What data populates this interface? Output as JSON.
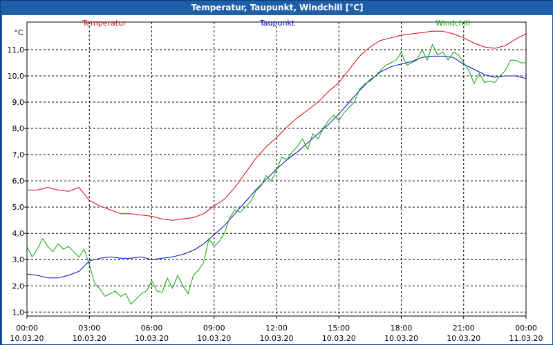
{
  "window": {
    "title": "Temperatur, Taupunkt, Windchill [°C]"
  },
  "chart_data": {
    "type": "line",
    "title": "Temperatur, Taupunkt, Windchill [°C]",
    "ylabel": "°C",
    "ylim": [
      0.85,
      12.05
    ],
    "yticks": [
      "1,0",
      "2,0",
      "3,0",
      "4,0",
      "5,0",
      "6,0",
      "7,0",
      "8,0",
      "9,0",
      "10,0",
      "11,0"
    ],
    "xlim": [
      0,
      24
    ],
    "xticks": [
      {
        "time": "00:00",
        "date": "10.03.20"
      },
      {
        "time": "03:00",
        "date": "10.03.20"
      },
      {
        "time": "06:00",
        "date": "10.03.20"
      },
      {
        "time": "09:00",
        "date": "10.03.20"
      },
      {
        "time": "12:00",
        "date": "10.03.20"
      },
      {
        "time": "15:00",
        "date": "10.03.20"
      },
      {
        "time": "18:00",
        "date": "10.03.20"
      },
      {
        "time": "21:00",
        "date": "10.03.20"
      },
      {
        "time": "00:00",
        "date": "11.03.20"
      }
    ],
    "grid": true,
    "series": [
      {
        "name": "Temperatur",
        "color": "#dd0000",
        "x": [
          0,
          0.5,
          1,
          1.5,
          2,
          2.5,
          3,
          3.5,
          4,
          4.5,
          5,
          5.5,
          6,
          6.5,
          7,
          7.5,
          8,
          8.5,
          9,
          9.5,
          10,
          10.5,
          11,
          11.5,
          12,
          12.5,
          13,
          13.5,
          14,
          14.5,
          15,
          15.5,
          16,
          16.5,
          17,
          17.5,
          18,
          18.5,
          19,
          19.5,
          20,
          20.5,
          21,
          21.5,
          22,
          22.5,
          23,
          23.5,
          24
        ],
        "values": [
          5.65,
          5.65,
          5.75,
          5.65,
          5.6,
          5.75,
          5.25,
          5.05,
          4.9,
          4.75,
          4.75,
          4.7,
          4.65,
          4.55,
          4.5,
          4.55,
          4.6,
          4.75,
          5.05,
          5.3,
          5.75,
          6.3,
          6.85,
          7.3,
          7.65,
          8.05,
          8.4,
          8.7,
          9.0,
          9.4,
          9.75,
          10.25,
          10.75,
          11.1,
          11.35,
          11.45,
          11.55,
          11.6,
          11.65,
          11.7,
          11.7,
          11.6,
          11.45,
          11.25,
          11.1,
          11.05,
          11.15,
          11.4,
          11.6
        ]
      },
      {
        "name": "Taupunkt",
        "color": "#0000cc",
        "x": [
          0,
          0.5,
          1,
          1.5,
          2,
          2.5,
          3,
          3.5,
          4,
          4.5,
          5,
          5.5,
          6,
          6.5,
          7,
          7.5,
          8,
          8.5,
          9,
          9.5,
          10,
          10.5,
          11,
          11.5,
          12,
          12.5,
          13,
          13.5,
          14,
          14.5,
          15,
          15.5,
          16,
          16.5,
          17,
          17.5,
          18,
          18.5,
          19,
          19.5,
          20,
          20.5,
          21,
          21.5,
          22,
          22.5,
          23,
          23.5,
          24
        ],
        "values": [
          2.45,
          2.4,
          2.3,
          2.3,
          2.4,
          2.55,
          2.95,
          3.05,
          3.1,
          3.05,
          3.05,
          3.1,
          3.0,
          3.05,
          3.1,
          3.2,
          3.35,
          3.6,
          3.95,
          4.3,
          4.75,
          5.2,
          5.65,
          6.05,
          6.45,
          6.8,
          7.1,
          7.45,
          7.8,
          8.15,
          8.55,
          9.0,
          9.45,
          9.85,
          10.15,
          10.35,
          10.45,
          10.55,
          10.7,
          10.75,
          10.75,
          10.7,
          10.45,
          10.25,
          10.05,
          9.95,
          10.0,
          10.0,
          9.9
        ]
      },
      {
        "name": "Windchill",
        "color": "#00aa00",
        "x": [
          0,
          0.25,
          0.5,
          0.75,
          1,
          1.25,
          1.5,
          1.75,
          2,
          2.25,
          2.5,
          2.75,
          3,
          3.25,
          3.5,
          3.75,
          4,
          4.25,
          4.5,
          4.75,
          5,
          5.25,
          5.5,
          5.75,
          6,
          6.25,
          6.5,
          6.75,
          7,
          7.25,
          7.5,
          7.75,
          8,
          8.25,
          8.5,
          8.75,
          9,
          9.25,
          9.5,
          9.75,
          10,
          10.25,
          10.5,
          10.75,
          11,
          11.25,
          11.5,
          11.75,
          12,
          12.25,
          12.5,
          12.75,
          13,
          13.25,
          13.5,
          13.75,
          14,
          14.25,
          14.5,
          14.75,
          15,
          15.25,
          15.5,
          15.75,
          16,
          16.25,
          16.5,
          16.75,
          17,
          17.25,
          17.5,
          17.75,
          18,
          18.25,
          18.5,
          18.75,
          19,
          19.25,
          19.5,
          19.75,
          20,
          20.25,
          20.5,
          20.75,
          21,
          21.25,
          21.5,
          21.75,
          22,
          22.25,
          22.5,
          22.75,
          23,
          23.25,
          23.5,
          23.75,
          24
        ],
        "values": [
          3.5,
          3.1,
          3.4,
          3.8,
          3.5,
          3.3,
          3.6,
          3.4,
          3.5,
          3.3,
          3.1,
          3.4,
          2.8,
          2.1,
          1.9,
          1.6,
          1.7,
          1.8,
          1.6,
          1.7,
          1.3,
          1.5,
          1.7,
          1.8,
          2.2,
          1.8,
          1.75,
          2.3,
          1.9,
          2.4,
          2.0,
          1.7,
          2.4,
          2.6,
          2.9,
          3.8,
          3.5,
          3.7,
          4.0,
          4.6,
          4.9,
          4.8,
          5.0,
          5.2,
          5.6,
          5.8,
          6.2,
          6.0,
          6.4,
          6.9,
          6.8,
          7.1,
          7.3,
          7.6,
          7.2,
          7.8,
          7.6,
          8.0,
          8.3,
          8.5,
          8.3,
          8.6,
          8.8,
          9.0,
          9.5,
          9.7,
          9.8,
          10.0,
          10.2,
          10.4,
          10.5,
          10.6,
          10.9,
          10.4,
          10.5,
          10.6,
          11.0,
          10.6,
          11.2,
          10.8,
          10.9,
          10.6,
          10.9,
          10.8,
          10.5,
          10.2,
          9.7,
          10.1,
          9.75,
          9.8,
          9.75,
          10.0,
          10.2,
          10.6,
          10.6,
          10.5,
          10.5
        ]
      }
    ]
  }
}
